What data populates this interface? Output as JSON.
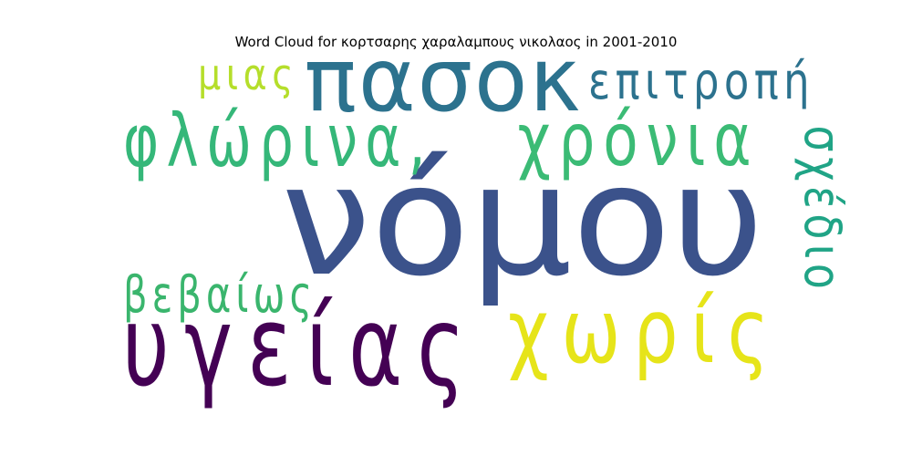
{
  "chart_data": {
    "type": "wordcloud",
    "title": "Word Cloud for κορτσαρης χαραλαμπους νικολαος in 2001-2010",
    "words": [
      {
        "text": "νόμου",
        "weight": 1.0,
        "color": "#3b528b",
        "orientation": "horizontal"
      },
      {
        "text": "υγείας",
        "weight": 0.72,
        "color": "#440154",
        "orientation": "horizontal"
      },
      {
        "text": "πασοκ",
        "weight": 0.58,
        "color": "#2c728e",
        "orientation": "horizontal"
      },
      {
        "text": "χωρίς",
        "weight": 0.58,
        "color": "#e6e419",
        "orientation": "horizontal"
      },
      {
        "text": "φλώρινα,",
        "weight": 0.48,
        "color": "#35b779",
        "orientation": "horizontal"
      },
      {
        "text": "χρόνια",
        "weight": 0.48,
        "color": "#3bbb75",
        "orientation": "horizontal"
      },
      {
        "text": "επιτροπή",
        "weight": 0.33,
        "color": "#2c728e",
        "orientation": "horizontal"
      },
      {
        "text": "βεβαίως",
        "weight": 0.33,
        "color": "#3ab56d",
        "orientation": "horizontal"
      },
      {
        "text": "σχέδιο",
        "weight": 0.33,
        "color": "#20a486",
        "orientation": "vertical"
      },
      {
        "text": "μιας",
        "weight": 0.28,
        "color": "#b5de2b",
        "orientation": "horizontal"
      }
    ]
  }
}
